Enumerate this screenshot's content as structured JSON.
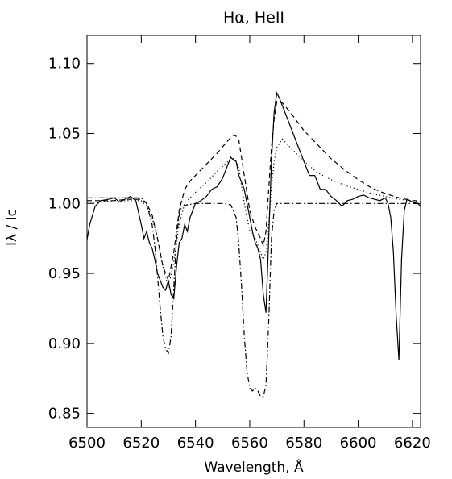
{
  "chart_data": {
    "type": "line",
    "title": "Hα, HeII",
    "xlabel": "Wavelength, Å",
    "ylabel": "Iλ / Ic",
    "xlim": [
      6500,
      6623
    ],
    "ylim": [
      0.84,
      1.12
    ],
    "xticks": [
      6500,
      6520,
      6540,
      6560,
      6580,
      6600,
      6620
    ],
    "yticks": [
      0.85,
      0.9,
      0.95,
      1.0,
      1.05,
      1.1
    ],
    "xtick_labels": [
      "6500",
      "6520",
      "6540",
      "6560",
      "6580",
      "6600",
      "6620"
    ],
    "ytick_labels": [
      "0.85",
      "0.90",
      "0.95",
      "1.00",
      "1.05",
      "1.10"
    ],
    "grid": false,
    "legend": "none",
    "series": [
      {
        "style": "solid",
        "x": [
          6500,
          6501,
          6503,
          6505,
          6508,
          6510,
          6512,
          6514,
          6516,
          6518,
          6520,
          6521,
          6522,
          6523,
          6524,
          6525,
          6526,
          6527,
          6528,
          6529,
          6530,
          6531,
          6532,
          6533,
          6534,
          6535,
          6536,
          6537,
          6538,
          6540,
          6542,
          6544,
          6546,
          6548,
          6550,
          6552,
          6553,
          6554,
          6555,
          6556,
          6557,
          6558,
          6559,
          6560,
          6561,
          6562,
          6563,
          6564,
          6565,
          6566,
          6567,
          6568,
          6569,
          6570,
          6571,
          6572,
          6574,
          6576,
          6578,
          6580,
          6582,
          6584,
          6586,
          6588,
          6590,
          6592,
          6594,
          6596,
          6598,
          6600,
          6602,
          6604,
          6606,
          6608,
          6610,
          6611,
          6612,
          6613,
          6614,
          6615,
          6616,
          6617,
          6618,
          6620,
          6622,
          6623
        ],
        "y": [
          0.974,
          0.985,
          0.998,
          1.002,
          1.003,
          1.004,
          1.001,
          1.003,
          1.005,
          1.002,
          0.985,
          0.975,
          0.98,
          0.972,
          0.968,
          0.96,
          0.95,
          0.945,
          0.94,
          0.938,
          0.945,
          0.935,
          0.932,
          0.955,
          0.972,
          0.975,
          0.985,
          0.98,
          0.99,
          1.0,
          1.002,
          1.005,
          1.01,
          1.012,
          1.018,
          1.028,
          1.033,
          1.031,
          1.03,
          1.02,
          1.015,
          1.01,
          1.0,
          0.99,
          0.98,
          0.972,
          0.968,
          0.96,
          0.935,
          0.922,
          0.975,
          1.03,
          1.065,
          1.079,
          1.075,
          1.07,
          1.06,
          1.05,
          1.04,
          1.03,
          1.02,
          1.02,
          1.01,
          1.01,
          1.005,
          1.002,
          0.998,
          1.002,
          1.003,
          1.005,
          1.006,
          1.004,
          1.003,
          1.002,
          1.004,
          1.0,
          0.99,
          0.965,
          0.92,
          0.888,
          0.96,
          0.995,
          1.003,
          1.001,
          1.0,
          0.998
        ]
      },
      {
        "style": "dashed",
        "x": [
          6500,
          6505,
          6510,
          6515,
          6520,
          6522,
          6524,
          6526,
          6528,
          6530,
          6532,
          6534,
          6536,
          6538,
          6540,
          6544,
          6548,
          6552,
          6554,
          6555,
          6556,
          6558,
          6560,
          6562,
          6564,
          6565,
          6566,
          6567,
          6568,
          6569,
          6570,
          6572,
          6575,
          6580,
          6585,
          6590,
          6595,
          6600,
          6605,
          6610,
          6615,
          6620,
          6623
        ],
        "y": [
          1.002,
          1.002,
          1.002,
          1.003,
          1.003,
          1.0,
          0.992,
          0.975,
          0.955,
          0.945,
          0.965,
          0.995,
          1.01,
          1.016,
          1.02,
          1.028,
          1.036,
          1.045,
          1.049,
          1.048,
          1.045,
          1.02,
          0.995,
          0.983,
          0.975,
          0.97,
          0.98,
          1.01,
          1.04,
          1.06,
          1.073,
          1.072,
          1.065,
          1.052,
          1.042,
          1.032,
          1.024,
          1.017,
          1.011,
          1.007,
          1.004,
          1.002,
          1.002
        ]
      },
      {
        "style": "dotted",
        "x": [
          6500,
          6505,
          6510,
          6515,
          6520,
          6522,
          6524,
          6526,
          6528,
          6530,
          6532,
          6534,
          6536,
          6540,
          6544,
          6548,
          6552,
          6554,
          6555,
          6556,
          6558,
          6560,
          6562,
          6564,
          6565,
          6566,
          6567,
          6568,
          6569,
          6570,
          6572,
          6575,
          6580,
          6585,
          6590,
          6595,
          6600,
          6605,
          6610,
          6615,
          6620,
          6623
        ],
        "y": [
          1.001,
          1.001,
          1.002,
          1.002,
          1.002,
          0.998,
          0.99,
          0.975,
          0.955,
          0.94,
          0.958,
          0.985,
          1.0,
          1.008,
          1.015,
          1.023,
          1.03,
          1.032,
          1.03,
          1.025,
          1.0,
          0.98,
          0.975,
          0.965,
          0.96,
          0.965,
          0.985,
          1.01,
          1.03,
          1.04,
          1.046,
          1.04,
          1.03,
          1.022,
          1.017,
          1.013,
          1.01,
          1.007,
          1.005,
          1.003,
          1.002,
          1.001
        ]
      },
      {
        "style": "dashdot",
        "x": [
          6500,
          6505,
          6510,
          6515,
          6520,
          6522,
          6524,
          6525,
          6526,
          6527,
          6528,
          6529,
          6530,
          6531,
          6532,
          6533,
          6534,
          6535,
          6537,
          6540,
          6545,
          6550,
          6553,
          6555,
          6556,
          6557,
          6558,
          6559,
          6560,
          6561,
          6562,
          6563,
          6564,
          6565,
          6566,
          6567,
          6568,
          6569,
          6570,
          6572,
          6575,
          6580,
          6590,
          6600,
          6610,
          6620,
          6623
        ],
        "y": [
          1.004,
          1.004,
          1.004,
          1.004,
          1.004,
          1.0,
          0.985,
          0.97,
          0.948,
          0.925,
          0.905,
          0.896,
          0.893,
          0.905,
          0.94,
          0.975,
          0.992,
          0.998,
          0.999,
          1.0,
          1.0,
          1.0,
          0.999,
          0.99,
          0.97,
          0.94,
          0.905,
          0.88,
          0.868,
          0.866,
          0.868,
          0.866,
          0.862,
          0.862,
          0.87,
          0.915,
          0.975,
          0.995,
          1.0,
          1.0,
          1.0,
          1.0,
          1.0,
          1.0,
          1.0,
          1.0,
          1.0
        ]
      }
    ]
  }
}
